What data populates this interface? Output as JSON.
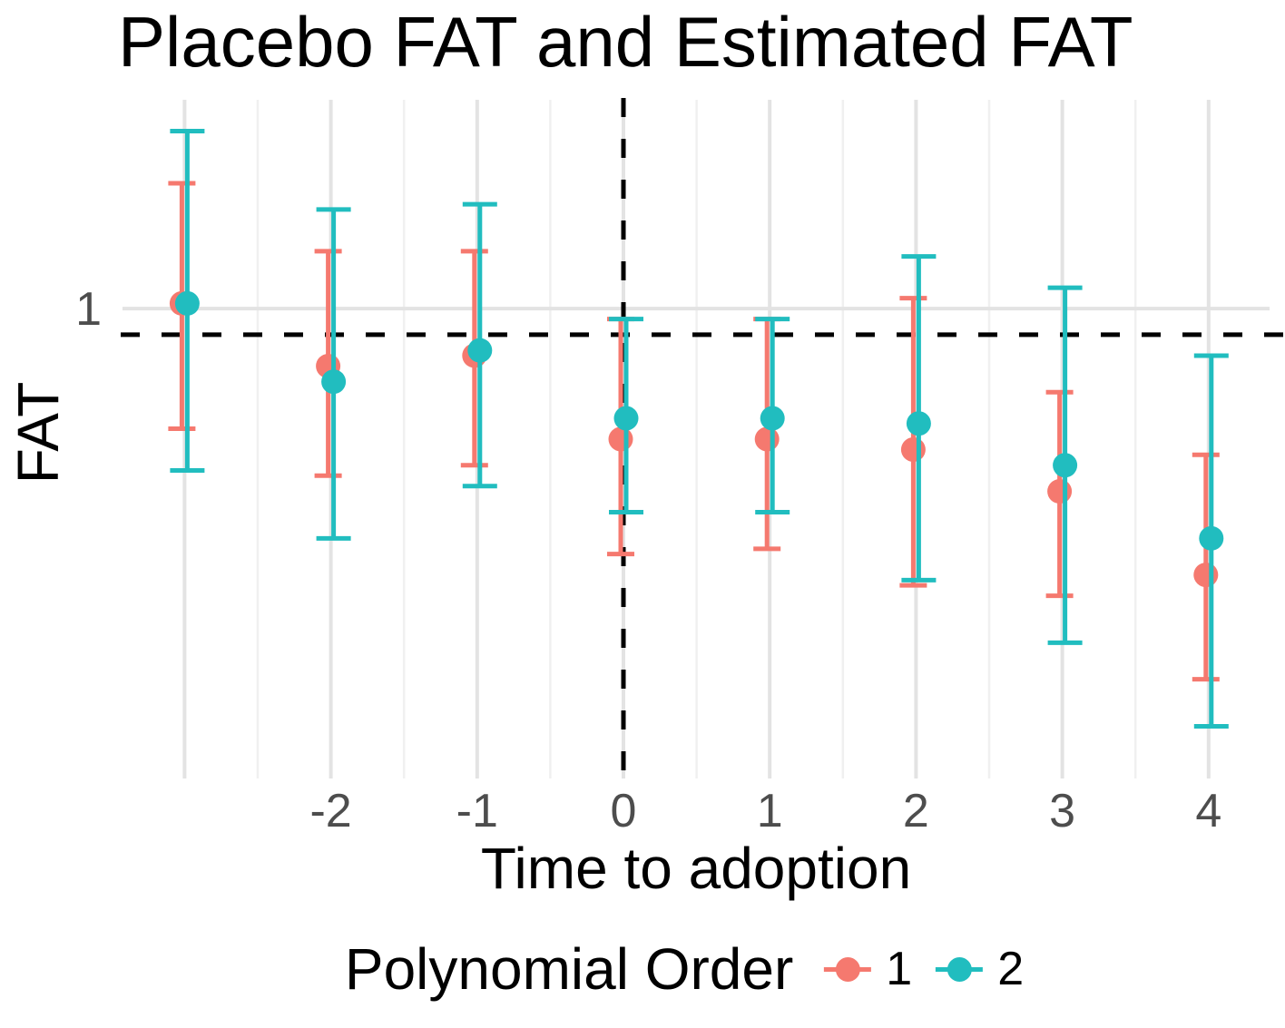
{
  "chart_data": {
    "type": "pointrange",
    "title": "Placebo FAT and Estimated FAT",
    "xlabel": "Time to adoption",
    "ylabel": "FAT",
    "x_ticks": [
      -2,
      -1,
      0,
      1,
      2,
      3,
      4
    ],
    "x_tick_labels": [
      "-2",
      "-1",
      "0",
      "1",
      "2",
      "3",
      "4"
    ],
    "y_ticks": [
      1
    ],
    "y_tick_labels": [
      "1"
    ],
    "xlim": [
      -3.5,
      4.45
    ],
    "ylim": [
      0.1,
      1.4
    ],
    "grid": {
      "vertical_major_x": [
        -3,
        -2,
        -1,
        0,
        1,
        2,
        3,
        4
      ],
      "vertical_minor_x": [
        -2.5,
        -1.5,
        -0.5,
        0.5,
        1.5,
        2.5,
        3.5
      ],
      "horizontal_major_y": [
        1
      ],
      "major_color": "#e3e3e3",
      "minor_color": "#f0f0f0"
    },
    "reference_lines": {
      "hline_y": 0.95,
      "vline_x": 0,
      "style": "dashed",
      "color": "#000000"
    },
    "legend": {
      "title": "Polynomial Order",
      "position": "bottom",
      "items": [
        {
          "label": "1",
          "color": "#f5796f"
        },
        {
          "label": "2",
          "color": "#21bdbf"
        }
      ]
    },
    "tick_label_color": "#4d4d4d",
    "series": [
      {
        "name": "1",
        "color": "#f5796f",
        "points": [
          {
            "x": -3,
            "y": 1.01,
            "lo": 0.77,
            "hi": 1.24
          },
          {
            "x": -2,
            "y": 0.89,
            "lo": 0.68,
            "hi": 1.11
          },
          {
            "x": -1,
            "y": 0.91,
            "lo": 0.7,
            "hi": 1.11
          },
          {
            "x": 0,
            "y": 0.75,
            "lo": 0.53,
            "hi": 0.98
          },
          {
            "x": 1,
            "y": 0.75,
            "lo": 0.54,
            "hi": 0.98
          },
          {
            "x": 2,
            "y": 0.73,
            "lo": 0.47,
            "hi": 1.02
          },
          {
            "x": 3,
            "y": 0.65,
            "lo": 0.45,
            "hi": 0.84
          },
          {
            "x": 4,
            "y": 0.49,
            "lo": 0.29,
            "hi": 0.72
          }
        ]
      },
      {
        "name": "2",
        "color": "#21bdbf",
        "points": [
          {
            "x": -3,
            "y": 1.01,
            "lo": 0.69,
            "hi": 1.34
          },
          {
            "x": -2,
            "y": 0.86,
            "lo": 0.56,
            "hi": 1.19
          },
          {
            "x": -1,
            "y": 0.92,
            "lo": 0.66,
            "hi": 1.2
          },
          {
            "x": 0,
            "y": 0.79,
            "lo": 0.61,
            "hi": 0.98
          },
          {
            "x": 1,
            "y": 0.79,
            "lo": 0.61,
            "hi": 0.98
          },
          {
            "x": 2,
            "y": 0.78,
            "lo": 0.48,
            "hi": 1.1
          },
          {
            "x": 3,
            "y": 0.7,
            "lo": 0.36,
            "hi": 1.04
          },
          {
            "x": 4,
            "y": 0.56,
            "lo": 0.2,
            "hi": 0.91
          }
        ]
      }
    ]
  }
}
